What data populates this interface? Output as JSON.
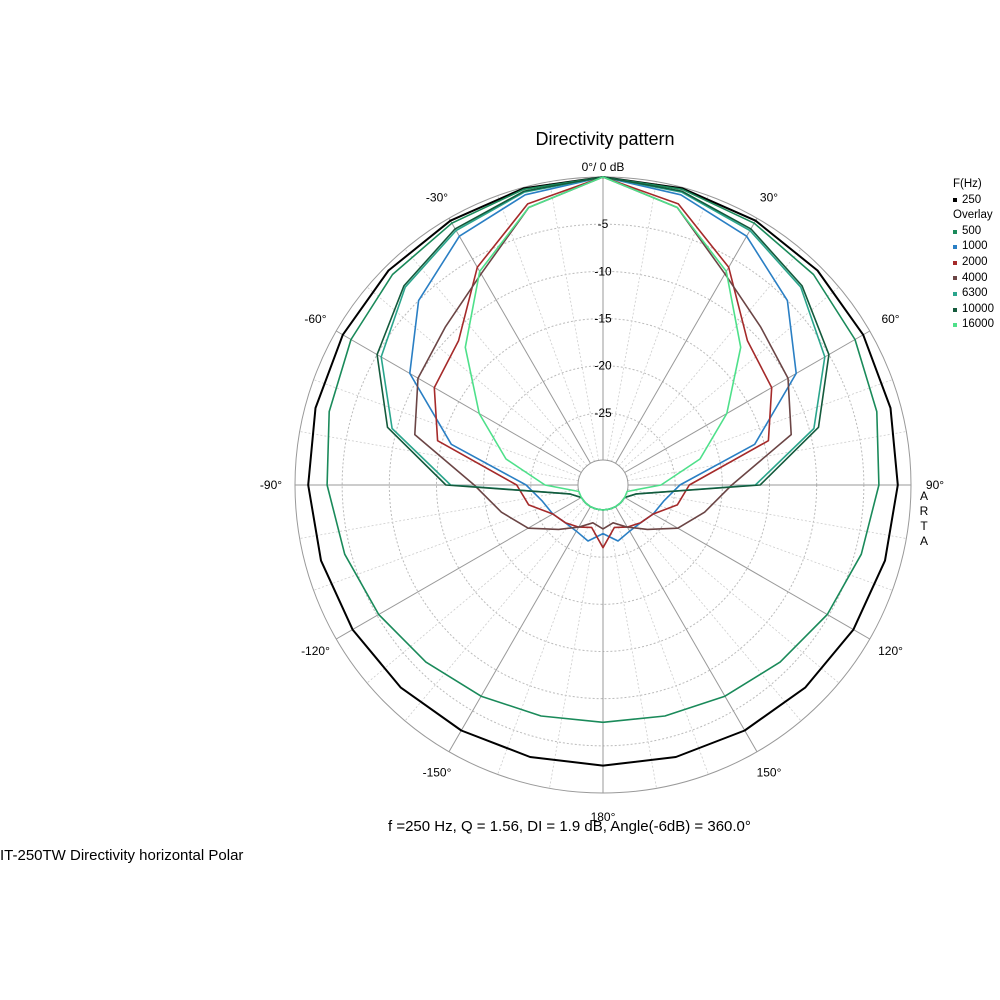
{
  "chart_data": {
    "type": "polar",
    "title": "Directivity pattern",
    "top_label": "0°/ 0 dB",
    "radial_ticks": [
      -5,
      -10,
      -15,
      -20,
      -25
    ],
    "radial_range_db": [
      -30,
      0
    ],
    "angle_labels": [
      "-30°",
      "30°",
      "-60°",
      "60°",
      "-90°",
      "90°",
      "-120°",
      "120°",
      "-150°",
      "150°",
      "180°"
    ],
    "grid": true,
    "legend": {
      "position": "right",
      "header": "F(Hz)",
      "main": "250",
      "overlay_header": "Overlay",
      "overlays": [
        "500",
        "1000",
        "2000",
        "4000",
        "6300",
        "10000",
        "16000"
      ]
    },
    "colors": {
      "250": "#000000",
      "500": "#1a8a5a",
      "1000": "#2a7fc4",
      "2000": "#a52a2a",
      "4000": "#6b4545",
      "6300": "#2aa58c",
      "10000": "#145a3c",
      "16000": "#4ee08a"
    },
    "angles_deg": [
      0,
      15,
      30,
      45,
      60,
      75,
      90,
      105,
      120,
      135,
      150,
      165,
      180
    ],
    "series": [
      {
        "name": "250",
        "values": [
          0,
          -0.1,
          -0.3,
          -0.5,
          -0.8,
          -1.1,
          -1.4,
          -1.7,
          -2.0,
          -2.3,
          -2.6,
          -2.8,
          -2.9
        ]
      },
      {
        "name": "500",
        "values": [
          0,
          -0.2,
          -0.6,
          -1.1,
          -1.8,
          -2.6,
          -3.4,
          -4.3,
          -5.2,
          -6.1,
          -6.8,
          -7.3,
          -7.5
        ]
      },
      {
        "name": "1000",
        "values": [
          0,
          -0.8,
          -2.2,
          -5.0,
          -9.0,
          -16.0,
          -24.5,
          -26.0,
          -26.5,
          -27.0,
          -27.0,
          -26.5,
          -27.5
        ]
      },
      {
        "name": "2000",
        "values": [
          0,
          -1.8,
          -6.0,
          -11.0,
          -12.0,
          -14.5,
          -23.5,
          -24.5,
          -26.5,
          -27.0,
          -27.5,
          -28.0,
          -26.0
        ]
      },
      {
        "name": "4000",
        "values": [
          0,
          -2.2,
          -6.8,
          -9.0,
          -10.0,
          -12.0,
          -19.0,
          -21.5,
          -23.5,
          -26.0,
          -27.5,
          -28.5,
          -28.0
        ]
      },
      {
        "name": "6300",
        "values": [
          0,
          -0.5,
          -1.5,
          -3.0,
          -5.5,
          -9.5,
          -16.5,
          -29.0,
          -30.0,
          -30.0,
          -30.0,
          -30.0,
          -30.0
        ]
      },
      {
        "name": "10000",
        "values": [
          0,
          -0.4,
          -1.3,
          -2.8,
          -5.0,
          -9.0,
          -16.0,
          -29.0,
          -30.0,
          -30.0,
          -30.0,
          -30.0,
          -30.0
        ]
      },
      {
        "name": "16000",
        "values": [
          0,
          -2.2,
          -6.5,
          -12.0,
          -17.5,
          -22.0,
          -26.5,
          -30.0,
          -30.0,
          -30.0,
          -30.0,
          -30.0,
          -30.0
        ]
      }
    ],
    "side_label": "ARTA",
    "stats_text": "f =250 Hz,  Q =  1.56,  DI =   1.9 dB, Angle(-6dB) = 360.0°",
    "caption": "IT-250TW  Directivity horizontal Polar"
  }
}
